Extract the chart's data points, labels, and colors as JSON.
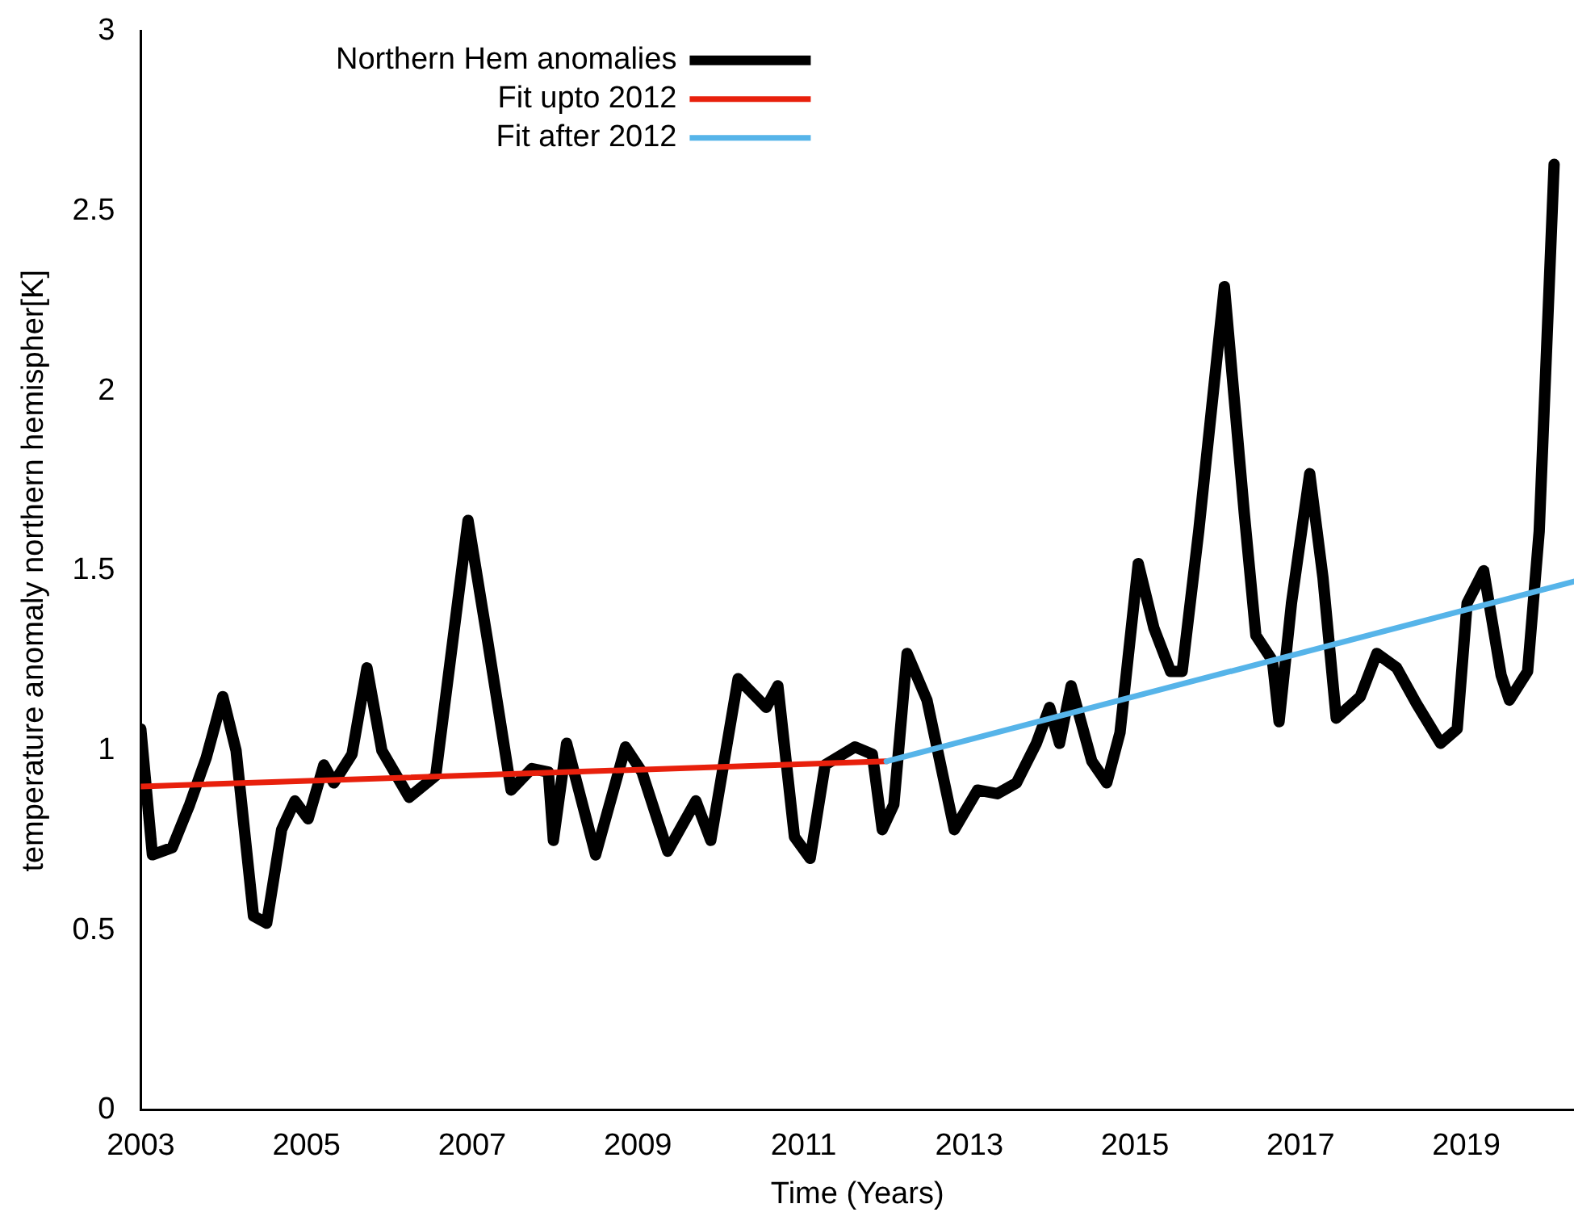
{
  "chart_data": {
    "type": "line",
    "xlabel": "Time (Years)",
    "ylabel": "temperature anomaly northern hemispher[K]",
    "xlim": [
      2003,
      2020.3
    ],
    "xticks": [
      2003,
      2005,
      2007,
      2009,
      2011,
      2013,
      2015,
      2017,
      2019
    ],
    "ylim": [
      0,
      3
    ],
    "yticks": [
      0,
      0.5,
      1,
      1.5,
      2,
      2.5,
      3
    ],
    "legend": "top left",
    "grid": false,
    "marker": "none",
    "line_style": "solid",
    "series": [
      {
        "name": "Northern Hem anomalies",
        "color": "#000000",
        "x": [
          2003.0,
          2003.14,
          2003.38,
          2003.59,
          2003.79,
          2003.99,
          2004.15,
          2004.36,
          2004.52,
          2004.7,
          2004.86,
          2005.02,
          2005.21,
          2005.33,
          2005.55,
          2005.73,
          2005.91,
          2006.24,
          2006.56,
          2006.95,
          2007.19,
          2007.47,
          2007.72,
          2007.92,
          2007.98,
          2008.14,
          2008.49,
          2008.85,
          2009.05,
          2009.36,
          2009.7,
          2009.88,
          2010.21,
          2010.55,
          2010.69,
          2010.89,
          2011.08,
          2011.26,
          2011.62,
          2011.83,
          2011.95,
          2012.09,
          2012.25,
          2012.49,
          2012.82,
          2013.1,
          2013.34,
          2013.57,
          2013.81,
          2013.97,
          2014.09,
          2014.23,
          2014.48,
          2014.66,
          2014.82,
          2015.04,
          2015.23,
          2015.43,
          2015.57,
          2015.77,
          2016.08,
          2016.32,
          2016.46,
          2016.66,
          2016.74,
          2016.89,
          2017.11,
          2017.27,
          2017.43,
          2017.72,
          2017.92,
          2018.16,
          2018.4,
          2018.69,
          2018.89,
          2019.01,
          2019.21,
          2019.42,
          2019.52,
          2019.74,
          2019.88,
          2020.06
        ],
        "values": [
          1.06,
          0.71,
          0.73,
          0.85,
          0.98,
          1.15,
          1.0,
          0.54,
          0.52,
          0.78,
          0.86,
          0.81,
          0.96,
          0.91,
          0.99,
          1.23,
          1.0,
          0.87,
          0.93,
          1.64,
          1.3,
          0.89,
          0.95,
          0.94,
          0.75,
          1.02,
          0.71,
          1.01,
          0.94,
          0.72,
          0.86,
          0.75,
          1.2,
          1.12,
          1.18,
          0.76,
          0.7,
          0.96,
          1.01,
          0.99,
          0.78,
          0.85,
          1.27,
          1.14,
          0.78,
          0.89,
          0.88,
          0.91,
          1.02,
          1.12,
          1.02,
          1.18,
          0.97,
          0.91,
          1.05,
          1.52,
          1.34,
          1.22,
          1.22,
          1.61,
          2.29,
          1.66,
          1.32,
          1.25,
          1.08,
          1.41,
          1.77,
          1.48,
          1.09,
          1.15,
          1.27,
          1.23,
          1.13,
          1.02,
          1.06,
          1.41,
          1.5,
          1.21,
          1.14,
          1.22,
          1.61,
          2.63
        ]
      },
      {
        "name": "Fit upto 2012",
        "color": "#e8200c",
        "x": [
          2003,
          2012
        ],
        "values": [
          0.9,
          0.97
        ]
      },
      {
        "name": "Fit after 2012",
        "color": "#56b4e9",
        "x": [
          2012,
          2020.3
        ],
        "values": [
          0.97,
          1.47
        ]
      }
    ]
  }
}
